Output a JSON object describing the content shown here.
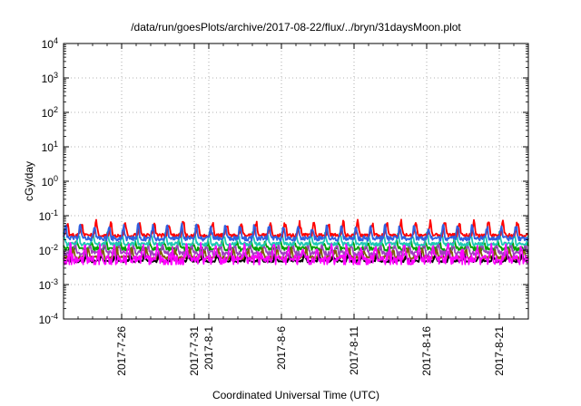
{
  "chart_data": {
    "type": "line",
    "title": "/data/run/goesPlots/archive/2017-08-22/flux/../bryn/31daysMoon.plot",
    "xlabel": "Coordinated Universal Time (UTC)",
    "ylabel": "cGy/day",
    "yscale": "log",
    "ylim": [
      0.0001,
      10000
    ],
    "y_ticks": [
      {
        "base": "10",
        "exp": "-4",
        "value": 0.0001
      },
      {
        "base": "10",
        "exp": "-3",
        "value": 0.001
      },
      {
        "base": "10",
        "exp": "-2",
        "value": 0.01
      },
      {
        "base": "10",
        "exp": "-1",
        "value": 0.1
      },
      {
        "base": "10",
        "exp": "0",
        "value": 1
      },
      {
        "base": "10",
        "exp": "1",
        "value": 10
      },
      {
        "base": "10",
        "exp": "2",
        "value": 100
      },
      {
        "base": "10",
        "exp": "3",
        "value": 1000
      },
      {
        "base": "10",
        "exp": "4",
        "value": 10000
      }
    ],
    "xlim": [
      "2017-07-22",
      "2017-08-23"
    ],
    "x_ticks": [
      {
        "label": "2017-7-26",
        "date": "2017-07-26"
      },
      {
        "label": "2017-7-31",
        "date": "2017-07-31"
      },
      {
        "label": "2017-8-1",
        "date": "2017-08-01"
      },
      {
        "label": "2017-8-6",
        "date": "2017-08-06"
      },
      {
        "label": "2017-8-11",
        "date": "2017-08-11"
      },
      {
        "label": "2017-8-16",
        "date": "2017-08-16"
      },
      {
        "label": "2017-8-21",
        "date": "2017-08-21"
      }
    ],
    "grid": true,
    "series": [
      {
        "color": "#ff0000",
        "baseline": 0.027,
        "noise": 0.12,
        "spike_max": 0.08
      },
      {
        "color": "#3060e0",
        "baseline": 0.022,
        "noise": 0.15,
        "spike_max": 0.06
      },
      {
        "color": "#1ec8b4",
        "baseline": 0.015,
        "noise": 0.12,
        "spike_max": 0.035
      },
      {
        "color": "#00a000",
        "baseline": 0.011,
        "noise": 0.15,
        "spike_max": 0.02
      },
      {
        "color": "#a040c0",
        "baseline": 0.008,
        "noise": 0.18,
        "spike_max": 0.018
      },
      {
        "color": "#806000",
        "baseline": 0.006,
        "noise": 0.12,
        "spike_max": 0.012
      },
      {
        "color": "#000000",
        "baseline": 0.0048,
        "noise": 0.08,
        "spike_max": 0.008
      },
      {
        "color": "#ff00ff",
        "baseline": 0.0055,
        "noise": 0.3,
        "spike_max": 0.017
      }
    ]
  }
}
